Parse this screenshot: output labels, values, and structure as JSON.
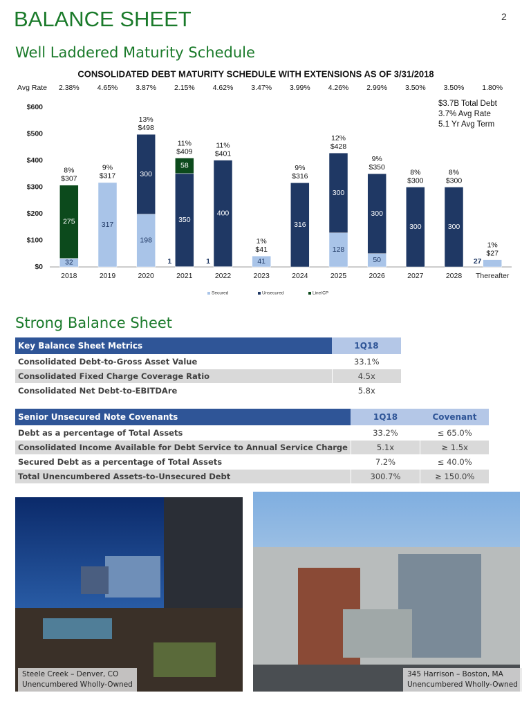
{
  "header": {
    "title": "BALANCE SHEET",
    "page_number": "2"
  },
  "section_1": {
    "heading": "Well Laddered Maturity Schedule"
  },
  "chart_data": {
    "type": "bar",
    "stacked": true,
    "title": "CONSOLIDATED DEBT MATURITY SCHEDULE WITH EXTENSIONS AS OF 3/31/2018",
    "rate_label": "Avg Rate",
    "rates": [
      "2.38%",
      "4.65%",
      "3.87%",
      "2.15%",
      "4.62%",
      "3.47%",
      "3.99%",
      "4.26%",
      "2.99%",
      "3.50%",
      "3.50%",
      "1.80%"
    ],
    "categories": [
      "2018",
      "2019",
      "2020",
      "2021",
      "2022",
      "2023",
      "2024",
      "2025",
      "2026",
      "2027",
      "2028",
      "Thereafter"
    ],
    "series": [
      {
        "name": "Secured",
        "color": "#a9c4e8",
        "values": [
          32,
          317,
          198,
          1,
          1,
          41,
          null,
          128,
          50,
          null,
          null,
          27
        ]
      },
      {
        "name": "Unsecured",
        "color": "#1f3864",
        "values": [
          null,
          null,
          300,
          350,
          400,
          null,
          316,
          300,
          300,
          300,
          300,
          null
        ]
      },
      {
        "name": "Line/CP",
        "color": "#0c4a1c",
        "values": [
          275,
          null,
          null,
          58,
          null,
          null,
          null,
          null,
          null,
          null,
          null,
          null
        ]
      }
    ],
    "total_labels": [
      "$307",
      "$317",
      "$498",
      "$409",
      "$401",
      "$41",
      "$316",
      "$428",
      "$350",
      "$300",
      "$300",
      "$27"
    ],
    "share_labels": [
      "8%",
      "9%",
      "13%",
      "11%",
      "11%",
      "1%",
      "9%",
      "12%",
      "9%",
      "8%",
      "8%",
      "1%"
    ],
    "ylim": [
      0,
      600
    ],
    "yticks": [
      {
        "value": 0,
        "label": "$0"
      },
      {
        "value": 100,
        "label": "$100"
      },
      {
        "value": 200,
        "label": "$200"
      },
      {
        "value": 300,
        "label": "$300"
      },
      {
        "value": 400,
        "label": "$400"
      },
      {
        "value": 500,
        "label": "$500"
      },
      {
        "value": 600,
        "label": "$600"
      }
    ],
    "annotations": [
      "$3.7B Total Debt",
      "3.7% Avg Rate",
      "5.1 Yr Avg Term"
    ],
    "grid": false
  },
  "section_2": {
    "heading": "Strong Balance Sheet"
  },
  "tables": [
    {
      "header": [
        "Key Balance Sheet Metrics",
        "1Q18"
      ],
      "rows": [
        [
          "Consolidated Debt-to-Gross Asset Value",
          "33.1%"
        ],
        [
          "Consolidated Fixed Charge Coverage Ratio",
          "4.5x"
        ],
        [
          "Consolidated Net Debt-to-EBITDAre",
          "5.8x"
        ]
      ]
    },
    {
      "header": [
        "Senior Unsecured Note Covenants",
        "1Q18",
        "Covenant"
      ],
      "rows": [
        [
          "Debt as a percentage of Total Assets",
          "33.2%",
          "≤ 65.0%"
        ],
        [
          "Consolidated Income Available for Debt Service to Annual Service Charge",
          "5.1x",
          "≥ 1.5x"
        ],
        [
          "Secured Debt as a percentage of Total Assets",
          "7.2%",
          "≤ 40.0%"
        ],
        [
          "Total Unencumbered Assets-to-Unsecured Debt",
          "300.7%",
          "≥ 150.0%"
        ]
      ]
    }
  ],
  "photos": [
    {
      "caption": [
        "Steele Creek – Denver, CO",
        "Unencumbered Wholly-Owned"
      ]
    },
    {
      "caption": [
        "345 Harrison – Boston, MA",
        "Unencumbered Wholly-Owned"
      ]
    }
  ]
}
